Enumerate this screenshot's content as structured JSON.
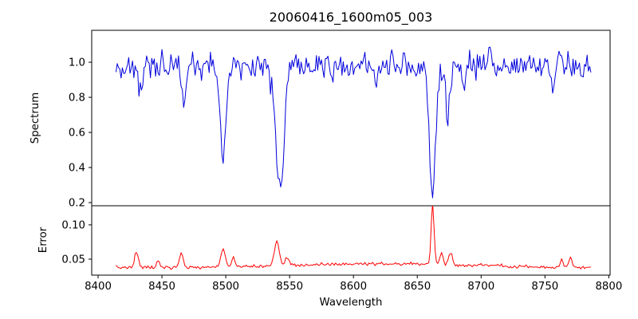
{
  "figure": {
    "background": "#ffffff"
  },
  "chart_data": {
    "type": "line",
    "title": "20060416_1600m05_003",
    "xlabel": "Wavelength",
    "grid": false,
    "legend": null,
    "xlim": [
      8395,
      8801
    ],
    "x_ticks": [
      8400,
      8450,
      8500,
      8550,
      8600,
      8650,
      8700,
      8750,
      8800
    ],
    "x_tick_labels": [
      "8400",
      "8450",
      "8500",
      "8550",
      "8600",
      "8650",
      "8700",
      "8750",
      "8800"
    ],
    "panels": [
      {
        "name": "spectrum",
        "ylabel": "Spectrum",
        "color": "#0000dd",
        "ylim": [
          0.182,
          1.182
        ],
        "y_ticks": [
          0.2,
          0.4,
          0.6,
          0.8,
          1.0
        ],
        "y_tick_labels": [
          "0.2",
          "0.4",
          "0.6",
          "0.8",
          "1.0"
        ],
        "series": {
          "seed": 42,
          "x_start": 8414,
          "x_end": 8786,
          "x_step": 1,
          "baseline": 0.98,
          "noise_sigma": 0.038,
          "features": [
            {
              "center": 8434,
              "amp": -0.16,
              "sigma": 1.3
            },
            {
              "center": 8467.5,
              "amp": -0.22,
              "sigma": 1.4
            },
            {
              "center": 8498,
              "amp": -0.5,
              "sigma": 2.2
            },
            {
              "center": 8542.5,
              "amp": -0.72,
              "sigma": 3.2
            },
            {
              "center": 8583,
              "amp": -0.1,
              "sigma": 1.0
            },
            {
              "center": 8618,
              "amp": -0.1,
              "sigma": 1.4
            },
            {
              "center": 8662,
              "amp": -0.72,
              "sigma": 2.6
            },
            {
              "center": 8674,
              "amp": -0.28,
              "sigma": 1.6
            },
            {
              "center": 8687,
              "amp": -0.18,
              "sigma": 1.2
            },
            {
              "center": 8707,
              "amp": 0.14,
              "sigma": 0.9
            },
            {
              "center": 8756,
              "amp": -0.12,
              "sigma": 1.2
            }
          ]
        }
      },
      {
        "name": "error",
        "ylabel": "Error",
        "color": "#ff0000",
        "ylim": [
          0.0267,
          0.1278
        ],
        "y_ticks": [
          0.05,
          0.1
        ],
        "y_tick_labels": [
          "0.05",
          "0.10"
        ],
        "series": {
          "seed": 7,
          "x_start": 8414,
          "x_end": 8786,
          "x_step": 1,
          "baseline": 0.0375,
          "noise_sigma": 0.0013,
          "baseline_hump": {
            "center": 8625,
            "amp": 0.006,
            "sigma": 70
          },
          "features": [
            {
              "center": 8430,
              "amp": 0.024,
              "sigma": 1.4
            },
            {
              "center": 8447,
              "amp": 0.01,
              "sigma": 1.2
            },
            {
              "center": 8465,
              "amp": 0.02,
              "sigma": 1.5
            },
            {
              "center": 8498,
              "amp": 0.026,
              "sigma": 1.8
            },
            {
              "center": 8506,
              "amp": 0.011,
              "sigma": 1.3
            },
            {
              "center": 8540,
              "amp": 0.036,
              "sigma": 2.0
            },
            {
              "center": 8548,
              "amp": 0.012,
              "sigma": 1.3
            },
            {
              "center": 8662,
              "amp": 0.09,
              "sigma": 1.1
            },
            {
              "center": 8669,
              "amp": 0.016,
              "sigma": 1.3
            },
            {
              "center": 8676,
              "amp": 0.018,
              "sigma": 1.4
            },
            {
              "center": 8763,
              "amp": 0.013,
              "sigma": 1.1
            },
            {
              "center": 8770,
              "amp": 0.016,
              "sigma": 1.1
            }
          ]
        }
      }
    ]
  }
}
